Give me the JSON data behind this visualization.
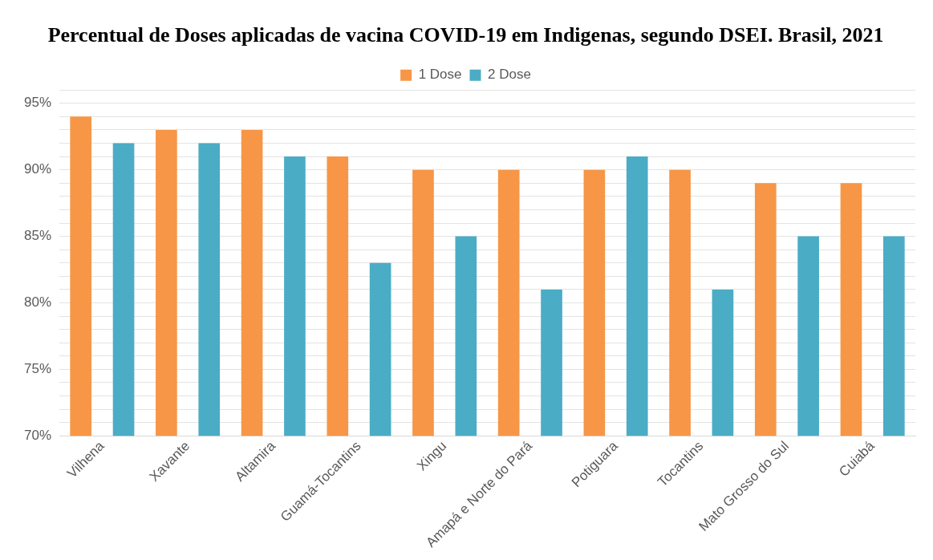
{
  "chart_data": {
    "type": "bar",
    "title": "Percentual de Doses aplicadas de vacina COVID-19 em Indigenas, segundo DSEI. Brasil, 2021",
    "categories": [
      "Vilhena",
      "Xavante",
      "Altamira",
      "Guamá-Tocantins",
      "Xingu",
      "Amapá e Norte do Pará",
      "Potiguara",
      "Tocantins",
      "Mato Grosso do Sul",
      "Cuiabá"
    ],
    "series": [
      {
        "name": "1 Dose",
        "color": "#f79646",
        "values": [
          94,
          93,
          93,
          91,
          90,
          90,
          90,
          90,
          89,
          89
        ]
      },
      {
        "name": "2 Dose",
        "color": "#4bacc6",
        "values": [
          92,
          92,
          91,
          83,
          85,
          81,
          91,
          81,
          85,
          85
        ]
      }
    ],
    "ylim": [
      70,
      96
    ],
    "yticks": [
      {
        "value": 70,
        "label": "70%"
      },
      {
        "value": 71,
        "label": null
      },
      {
        "value": 72,
        "label": null
      },
      {
        "value": 73,
        "label": null
      },
      {
        "value": 74,
        "label": null
      },
      {
        "value": 75,
        "label": "75%"
      },
      {
        "value": 76,
        "label": null
      },
      {
        "value": 77,
        "label": null
      },
      {
        "value": 78,
        "label": null
      },
      {
        "value": 79,
        "label": null
      },
      {
        "value": 80,
        "label": "80%"
      },
      {
        "value": 81,
        "label": null
      },
      {
        "value": 82,
        "label": null
      },
      {
        "value": 83,
        "label": null
      },
      {
        "value": 84,
        "label": null
      },
      {
        "value": 85,
        "label": "85%"
      },
      {
        "value": 86,
        "label": null
      },
      {
        "value": 87,
        "label": null
      },
      {
        "value": 88,
        "label": null
      },
      {
        "value": 89,
        "label": null
      },
      {
        "value": 90,
        "label": "90%"
      },
      {
        "value": 91,
        "label": null
      },
      {
        "value": 92,
        "label": null
      },
      {
        "value": 93,
        "label": null
      },
      {
        "value": 94,
        "label": null
      },
      {
        "value": 95,
        "label": "95%"
      },
      {
        "value": 96,
        "label": null
      }
    ],
    "grid": "y",
    "legend": "top"
  }
}
